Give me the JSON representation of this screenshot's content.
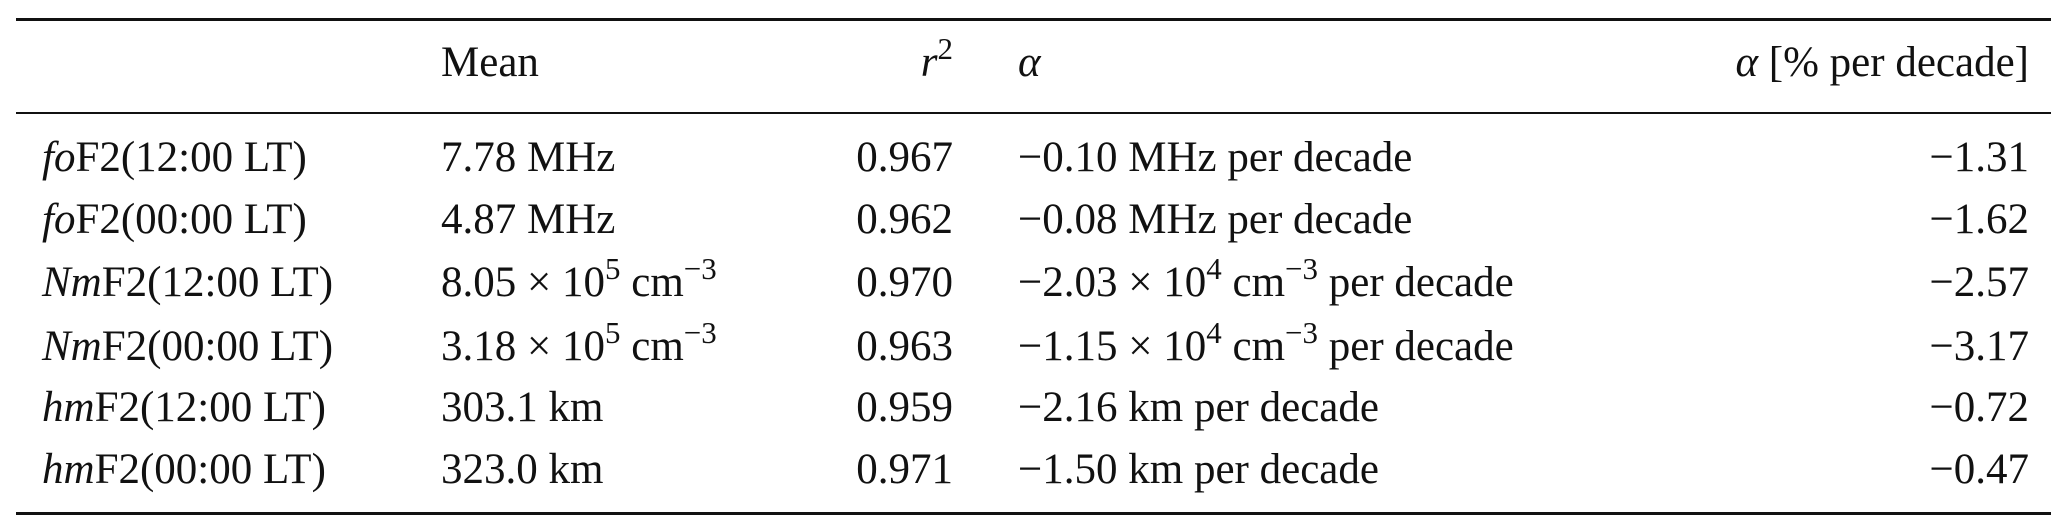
{
  "table": {
    "headers": [
      "",
      "Mean",
      "r^2",
      "α",
      "α [% per decade]"
    ],
    "header_parts": {
      "mean": "Mean",
      "r2_base": "r",
      "r2_exp": "2",
      "alpha": "α",
      "alpha_pct_sym": "α",
      "alpha_pct_rest": " [% per decade]"
    },
    "rows": [
      {
        "param_italic": "fo",
        "param_rest": "F2(12:00 LT)",
        "mean_main": "7.78 MHz",
        "mean_exp": "",
        "mean_unit": "",
        "mean_unit_exp": "",
        "r2": "0.967",
        "alpha_main": "−0.10 MHz per decade",
        "alpha_exp": "",
        "alpha_unit": "",
        "alpha_unit_exp": "",
        "alpha_tail": "",
        "alpha_pct": "−1.31"
      },
      {
        "param_italic": "fo",
        "param_rest": "F2(00:00 LT)",
        "mean_main": "4.87 MHz",
        "mean_exp": "",
        "mean_unit": "",
        "mean_unit_exp": "",
        "r2": "0.962",
        "alpha_main": "−0.08 MHz per decade",
        "alpha_exp": "",
        "alpha_unit": "",
        "alpha_unit_exp": "",
        "alpha_tail": "",
        "alpha_pct": "−1.62"
      },
      {
        "param_italic": "Nm",
        "param_rest": "F2(12:00 LT)",
        "mean_main": "8.05 × 10",
        "mean_exp": "5",
        "mean_unit": " cm",
        "mean_unit_exp": "−3",
        "r2": "0.970",
        "alpha_main": "−2.03 × 10",
        "alpha_exp": "4",
        "alpha_unit": " cm",
        "alpha_unit_exp": "−3",
        "alpha_tail": " per decade",
        "alpha_pct": "−2.57"
      },
      {
        "param_italic": "Nm",
        "param_rest": "F2(00:00 LT)",
        "mean_main": "3.18 × 10",
        "mean_exp": "5",
        "mean_unit": " cm",
        "mean_unit_exp": "−3",
        "r2": "0.963",
        "alpha_main": "−1.15 × 10",
        "alpha_exp": "4",
        "alpha_unit": " cm",
        "alpha_unit_exp": "−3",
        "alpha_tail": " per decade",
        "alpha_pct": "−3.17"
      },
      {
        "param_italic": "hm",
        "param_rest": "F2(12:00 LT)",
        "mean_main": "303.1 km",
        "mean_exp": "",
        "mean_unit": "",
        "mean_unit_exp": "",
        "r2": "0.959",
        "alpha_main": "−2.16 km per decade",
        "alpha_exp": "",
        "alpha_unit": "",
        "alpha_unit_exp": "",
        "alpha_tail": "",
        "alpha_pct": "−0.72"
      },
      {
        "param_italic": "hm",
        "param_rest": "F2(00:00 LT)",
        "mean_main": "323.0 km",
        "mean_exp": "",
        "mean_unit": "",
        "mean_unit_exp": "",
        "r2": "0.971",
        "alpha_main": "−1.50 km per decade",
        "alpha_exp": "",
        "alpha_unit": "",
        "alpha_unit_exp": "",
        "alpha_tail": "",
        "alpha_pct": "−0.47"
      }
    ]
  }
}
